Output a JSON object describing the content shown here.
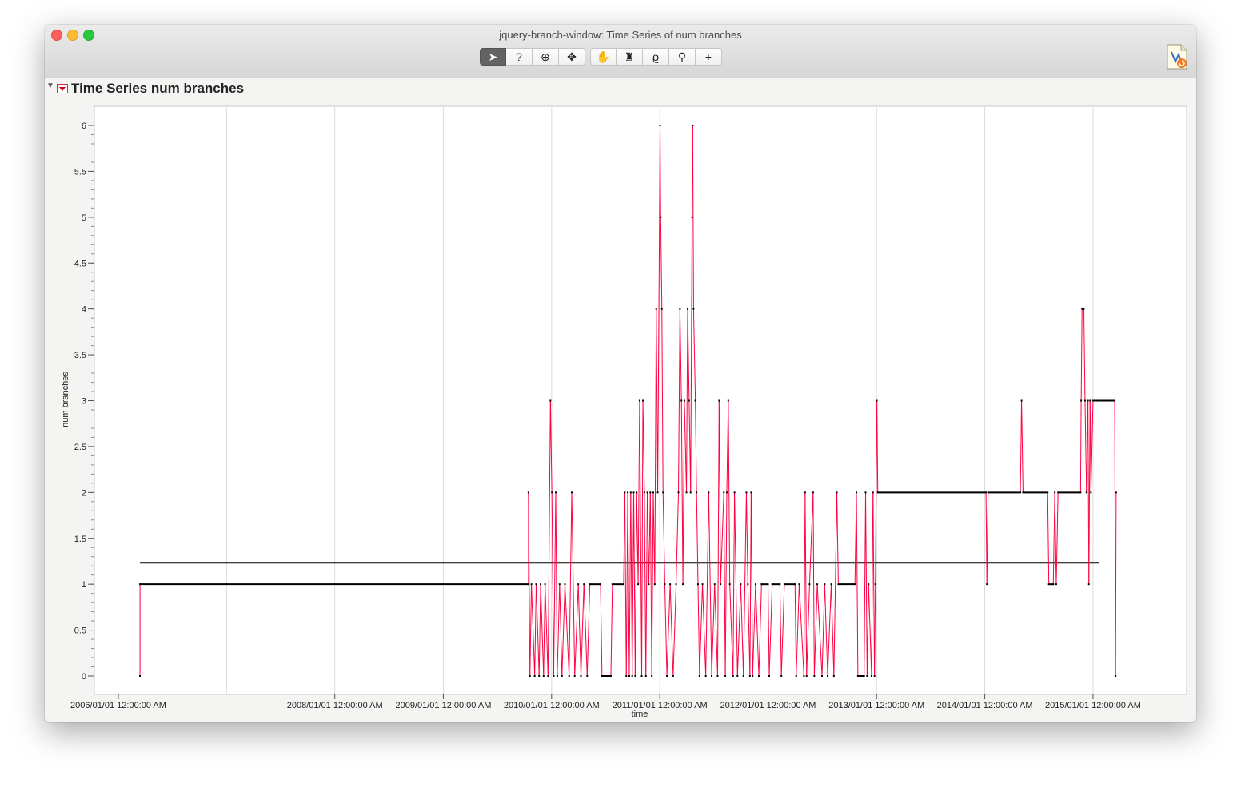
{
  "window": {
    "title": "jquery-branch-window: Time Series of num branches"
  },
  "toolbar": {
    "tools": [
      {
        "name": "arrow-tool-icon",
        "glyph": "➤"
      },
      {
        "name": "help-tool-icon",
        "glyph": "?"
      },
      {
        "name": "selection-tool-icon",
        "glyph": "⊕"
      },
      {
        "name": "move-tool-icon",
        "glyph": "✥"
      },
      {
        "name": "grabber-tool-icon",
        "glyph": "✋"
      },
      {
        "name": "brush-tool-icon",
        "glyph": "♜"
      },
      {
        "name": "lasso-tool-icon",
        "glyph": "ϱ"
      },
      {
        "name": "magnifier-tool-icon",
        "glyph": "⚲"
      },
      {
        "name": "crosshair-tool-icon",
        "glyph": "+"
      }
    ]
  },
  "report": {
    "title": "Time Series num branches"
  },
  "chart_data": {
    "type": "line",
    "title": "Time Series num branches",
    "xlabel": "time",
    "ylabel": "num branches",
    "xlim": [
      "2006-01-01",
      "2015-01-20"
    ],
    "ylim": [
      0,
      6
    ],
    "y_ticks": [
      0,
      0.5,
      1,
      1.5,
      2,
      2.5,
      3,
      3.5,
      4,
      4.5,
      5,
      5.5,
      6
    ],
    "x_tick_labels": [
      {
        "date": "2006-01-01",
        "label": "2006/01/01 12:00:00 AM"
      },
      {
        "date": "2008-01-01",
        "label": "2008/01/01 12:00:00 AM"
      },
      {
        "date": "2009-01-01",
        "label": "2009/01/01 12:00:00 AM"
      },
      {
        "date": "2010-01-01",
        "label": "2010/01/01 12:00:00 AM"
      },
      {
        "date": "2011-01-01",
        "label": "2011/01/01 12:00:00 AM"
      },
      {
        "date": "2012-01-01",
        "label": "2012/01/01 12:00:00 AM"
      },
      {
        "date": "2013-01-01",
        "label": "2013/01/01 12:00:00 AM"
      },
      {
        "date": "2014-01-01",
        "label": "2014/01/01 12:00:00 AM"
      },
      {
        "date": "2015-01-01",
        "label": "2015/01/01 12:00:00 AM"
      }
    ],
    "x_gridlines": [
      "2007-01-01",
      "2008-01-01",
      "2009-01-01",
      "2010-01-01",
      "2011-01-01",
      "2012-01-01",
      "2013-01-01",
      "2014-01-01",
      "2015-01-01"
    ],
    "mean_line": {
      "value": 1.23,
      "from": "2006-03-15",
      "to": "2015-01-20"
    },
    "series": [
      {
        "color": "#ff0040",
        "marker_color": "#000000",
        "points": [
          [
            "2006-03-15",
            0
          ],
          [
            "2006-03-15",
            1
          ],
          [
            "2009-10-15",
            1
          ],
          [
            "2009-10-15",
            2
          ],
          [
            "2009-10-20",
            0
          ],
          [
            "2009-10-25",
            1
          ],
          [
            "2009-11-05",
            0
          ],
          [
            "2009-11-10",
            1
          ],
          [
            "2009-11-20",
            0
          ],
          [
            "2009-11-25",
            1
          ],
          [
            "2009-12-05",
            0
          ],
          [
            "2009-12-10",
            1
          ],
          [
            "2009-12-20",
            0
          ],
          [
            "2009-12-28",
            3
          ],
          [
            "2010-01-02",
            2
          ],
          [
            "2010-01-08",
            0
          ],
          [
            "2010-01-15",
            2
          ],
          [
            "2010-01-20",
            0
          ],
          [
            "2010-01-28",
            1
          ],
          [
            "2010-02-05",
            0
          ],
          [
            "2010-02-15",
            1
          ],
          [
            "2010-03-01",
            0
          ],
          [
            "2010-03-10",
            2
          ],
          [
            "2010-03-20",
            0
          ],
          [
            "2010-04-01",
            1
          ],
          [
            "2010-04-10",
            0
          ],
          [
            "2010-04-20",
            1
          ],
          [
            "2010-05-01",
            0
          ],
          [
            "2010-05-10",
            1
          ],
          [
            "2010-06-15",
            1
          ],
          [
            "2010-06-20",
            0
          ],
          [
            "2010-07-20",
            0
          ],
          [
            "2010-07-25",
            1
          ],
          [
            "2010-09-01",
            1
          ],
          [
            "2010-09-05",
            2
          ],
          [
            "2010-09-10",
            0
          ],
          [
            "2010-09-15",
            2
          ],
          [
            "2010-09-20",
            0
          ],
          [
            "2010-09-25",
            2
          ],
          [
            "2010-09-30",
            0
          ],
          [
            "2010-10-05",
            2
          ],
          [
            "2010-10-10",
            0
          ],
          [
            "2010-10-15",
            2
          ],
          [
            "2010-10-20",
            1
          ],
          [
            "2010-10-25",
            3
          ],
          [
            "2010-11-01",
            0
          ],
          [
            "2010-11-05",
            3
          ],
          [
            "2010-11-10",
            2
          ],
          [
            "2010-11-15",
            0
          ],
          [
            "2010-11-20",
            2
          ],
          [
            "2010-11-25",
            1
          ],
          [
            "2010-11-30",
            2
          ],
          [
            "2010-12-05",
            0
          ],
          [
            "2010-12-10",
            2
          ],
          [
            "2010-12-15",
            1
          ],
          [
            "2010-12-20",
            4
          ],
          [
            "2010-12-25",
            2
          ],
          [
            "2011-01-02",
            6
          ],
          [
            "2011-01-04",
            5
          ],
          [
            "2011-01-08",
            4
          ],
          [
            "2011-01-12",
            2
          ],
          [
            "2011-01-18",
            1
          ],
          [
            "2011-01-25",
            0
          ],
          [
            "2011-02-05",
            1
          ],
          [
            "2011-02-15",
            0
          ],
          [
            "2011-02-25",
            1
          ],
          [
            "2011-03-05",
            2
          ],
          [
            "2011-03-10",
            4
          ],
          [
            "2011-03-15",
            3
          ],
          [
            "2011-03-20",
            1
          ],
          [
            "2011-03-25",
            3
          ],
          [
            "2011-04-01",
            2
          ],
          [
            "2011-04-05",
            4
          ],
          [
            "2011-04-10",
            3
          ],
          [
            "2011-04-15",
            2
          ],
          [
            "2011-04-20",
            5
          ],
          [
            "2011-04-22",
            6
          ],
          [
            "2011-04-25",
            4
          ],
          [
            "2011-05-01",
            3
          ],
          [
            "2011-05-05",
            2
          ],
          [
            "2011-05-10",
            1
          ],
          [
            "2011-05-15",
            0
          ],
          [
            "2011-05-25",
            1
          ],
          [
            "2011-06-05",
            0
          ],
          [
            "2011-06-15",
            2
          ],
          [
            "2011-06-25",
            0
          ],
          [
            "2011-07-05",
            1
          ],
          [
            "2011-07-15",
            0
          ],
          [
            "2011-07-20",
            3
          ],
          [
            "2011-07-25",
            1
          ],
          [
            "2011-08-05",
            2
          ],
          [
            "2011-08-10",
            0
          ],
          [
            "2011-08-15",
            2
          ],
          [
            "2011-08-20",
            3
          ],
          [
            "2011-08-25",
            1
          ],
          [
            "2011-09-05",
            0
          ],
          [
            "2011-09-10",
            2
          ],
          [
            "2011-09-20",
            0
          ],
          [
            "2011-10-01",
            1
          ],
          [
            "2011-10-10",
            0
          ],
          [
            "2011-10-20",
            2
          ],
          [
            "2011-10-25",
            1
          ],
          [
            "2011-11-01",
            0
          ],
          [
            "2011-11-05",
            2
          ],
          [
            "2011-11-10",
            0
          ],
          [
            "2011-11-20",
            1
          ],
          [
            "2011-12-01",
            0
          ],
          [
            "2011-12-10",
            1
          ],
          [
            "2012-01-01",
            1
          ],
          [
            "2012-01-05",
            0
          ],
          [
            "2012-01-15",
            1
          ],
          [
            "2012-02-10",
            1
          ],
          [
            "2012-02-15",
            0
          ],
          [
            "2012-02-25",
            1
          ],
          [
            "2012-04-01",
            1
          ],
          [
            "2012-04-05",
            0
          ],
          [
            "2012-04-15",
            1
          ],
          [
            "2012-05-01",
            0
          ],
          [
            "2012-05-05",
            2
          ],
          [
            "2012-05-10",
            0
          ],
          [
            "2012-05-20",
            1
          ],
          [
            "2012-06-01",
            2
          ],
          [
            "2012-06-05",
            0
          ],
          [
            "2012-06-15",
            1
          ],
          [
            "2012-07-01",
            0
          ],
          [
            "2012-07-10",
            1
          ],
          [
            "2012-07-20",
            0
          ],
          [
            "2012-08-01",
            1
          ],
          [
            "2012-08-10",
            0
          ],
          [
            "2012-08-20",
            2
          ],
          [
            "2012-08-25",
            1
          ],
          [
            "2012-10-20",
            1
          ],
          [
            "2012-10-25",
            2
          ],
          [
            "2012-10-30",
            0
          ],
          [
            "2012-11-20",
            0
          ],
          [
            "2012-11-25",
            2
          ],
          [
            "2012-11-30",
            0
          ],
          [
            "2012-12-05",
            1
          ],
          [
            "2012-12-15",
            0
          ],
          [
            "2012-12-20",
            2
          ],
          [
            "2012-12-25",
            0
          ],
          [
            "2012-12-28",
            1
          ],
          [
            "2013-01-02",
            3
          ],
          [
            "2013-01-05",
            2
          ],
          [
            "2014-01-05",
            2
          ],
          [
            "2014-01-08",
            1
          ],
          [
            "2014-01-12",
            2
          ],
          [
            "2014-05-01",
            2
          ],
          [
            "2014-05-05",
            3
          ],
          [
            "2014-05-10",
            2
          ],
          [
            "2014-08-01",
            2
          ],
          [
            "2014-08-05",
            1
          ],
          [
            "2014-08-20",
            1
          ],
          [
            "2014-08-25",
            2
          ],
          [
            "2014-08-30",
            1
          ],
          [
            "2014-09-05",
            2
          ],
          [
            "2014-11-20",
            2
          ],
          [
            "2014-11-22",
            3
          ],
          [
            "2014-11-25",
            4
          ],
          [
            "2014-12-01",
            4
          ],
          [
            "2014-12-05",
            3
          ],
          [
            "2014-12-10",
            2
          ],
          [
            "2014-12-15",
            3
          ],
          [
            "2014-12-18",
            1
          ],
          [
            "2014-12-22",
            3
          ],
          [
            "2014-12-25",
            2
          ],
          [
            "2015-01-01",
            3
          ],
          [
            "2015-03-15",
            3
          ],
          [
            "2015-03-18",
            0
          ],
          [
            "2015-03-20",
            2
          ]
        ]
      }
    ]
  }
}
